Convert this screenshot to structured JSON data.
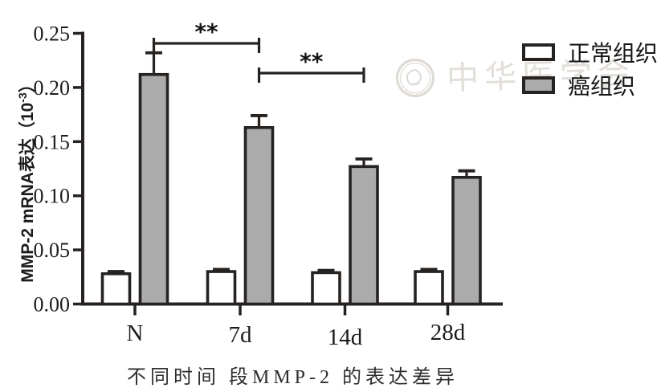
{
  "caption": "不同时间 段MMP-2 的表达差异",
  "axes": {
    "y_label_main": "MMP-2 mRNA表达（10",
    "y_label_sup": "-3",
    "y_label_close": "）"
  },
  "legend": {
    "items": [
      {
        "label": "正常组织",
        "swatch_color": "#ffffff"
      },
      {
        "label": "癌组织",
        "swatch_color": "#ababab"
      }
    ]
  },
  "watermark": {
    "text": "中华医学会",
    "seal": "cma-seal-logo"
  },
  "colors": {
    "line": "#262220",
    "bar_gray": "#ababab",
    "bar_white": "#ffffff",
    "text": "#1c1c1c",
    "watermark": "#e0dcd7"
  },
  "chart_data": {
    "type": "bar",
    "title": "不同时间 段MMP-2 的表达差异",
    "xlabel": "",
    "ylabel": "MMP-2 mRNA表达(10⁻³)",
    "categories": [
      "N",
      "7d",
      "14d",
      "28d"
    ],
    "series": [
      {
        "name": "正常组织",
        "fill": "#ffffff",
        "values": [
          0.028,
          0.03,
          0.029,
          0.03
        ],
        "errors": [
          0.002,
          0.002,
          0.002,
          0.002
        ]
      },
      {
        "name": "癌组织",
        "fill": "#ababab",
        "values": [
          0.212,
          0.163,
          0.127,
          0.117
        ],
        "errors": [
          0.02,
          0.011,
          0.007,
          0.006
        ]
      }
    ],
    "ylim": [
      0,
      0.25
    ],
    "y_ticks": [
      "0.00",
      "0.05",
      "0.10",
      "0.15",
      "0.20",
      "0.25"
    ],
    "significance": [
      {
        "from": 0,
        "to": 1,
        "series": 1,
        "label": "**"
      },
      {
        "from": 1,
        "to": 2,
        "series": 1,
        "label": "**"
      }
    ],
    "grid": false,
    "legend_position": "top-right",
    "error_bars": "upper"
  }
}
